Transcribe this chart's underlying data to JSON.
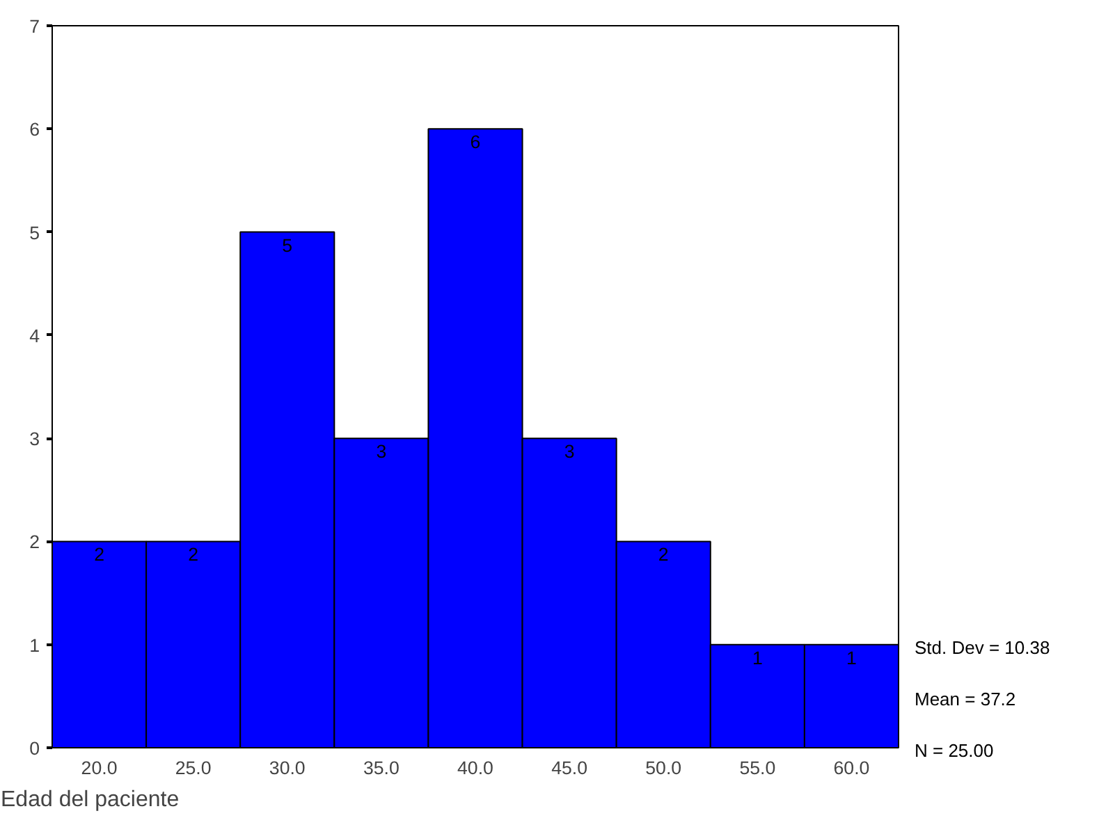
{
  "chart_data": {
    "type": "histogram",
    "xlabel": "Edad del paciente",
    "bins": [
      17.5,
      22.5,
      27.5,
      32.5,
      37.5,
      42.5,
      47.5,
      52.5,
      57.5,
      62.5
    ],
    "values": [
      2,
      2,
      5,
      3,
      6,
      3,
      2,
      1,
      1
    ],
    "color": "#0000ff",
    "data_labels": true,
    "grid": false,
    "xlim": [
      17.5,
      62.5
    ],
    "ylim": [
      0,
      7
    ],
    "xticks": [
      {
        "value": 20,
        "label": "20.0"
      },
      {
        "value": 25,
        "label": "25.0"
      },
      {
        "value": 30,
        "label": "30.0"
      },
      {
        "value": 35,
        "label": "35.0"
      },
      {
        "value": 40,
        "label": "40.0"
      },
      {
        "value": 45,
        "label": "45.0"
      },
      {
        "value": 50,
        "label": "50.0"
      },
      {
        "value": 55,
        "label": "55.0"
      },
      {
        "value": 60,
        "label": "60.0"
      }
    ],
    "yticks": [
      0,
      1,
      2,
      3,
      4,
      5,
      6,
      7
    ],
    "annotations": [
      "Std. Dev = 10.38",
      "Mean = 37.2",
      "N = 25.00"
    ]
  }
}
